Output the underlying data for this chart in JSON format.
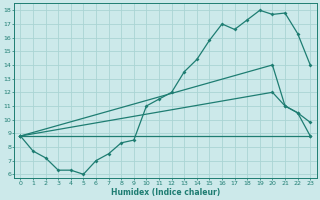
{
  "xlabel": "Humidex (Indice chaleur)",
  "bg_color": "#cce9ea",
  "grid_color": "#aad4d4",
  "line_color": "#1e7d72",
  "xlim": [
    -0.5,
    23.5
  ],
  "ylim": [
    5.7,
    18.5
  ],
  "yticks": [
    6,
    7,
    8,
    9,
    10,
    11,
    12,
    13,
    14,
    15,
    16,
    17,
    18
  ],
  "xticks": [
    0,
    1,
    2,
    3,
    4,
    5,
    6,
    7,
    8,
    9,
    10,
    11,
    12,
    13,
    14,
    15,
    16,
    17,
    18,
    19,
    20,
    21,
    22,
    23
  ],
  "line1_x": [
    0,
    1,
    2,
    3,
    4,
    5,
    6,
    7,
    8,
    9,
    10,
    11,
    12,
    13,
    14,
    15,
    16,
    17,
    18,
    19,
    20,
    21,
    22,
    23
  ],
  "line1_y": [
    8.8,
    7.7,
    7.2,
    6.3,
    6.3,
    6.0,
    7.0,
    7.5,
    8.3,
    8.5,
    11.0,
    11.5,
    12.0,
    13.5,
    14.4,
    15.8,
    17.0,
    16.6,
    17.3,
    18.0,
    17.7,
    17.8,
    16.3,
    14.0
  ],
  "line2_x": [
    0,
    20,
    21,
    22,
    23
  ],
  "line2_y": [
    8.8,
    14.0,
    11.0,
    10.5,
    8.8
  ],
  "line3_x": [
    0,
    20,
    21,
    22,
    23
  ],
  "line3_y": [
    8.8,
    12.0,
    11.0,
    10.5,
    9.8
  ],
  "line4_x": [
    0,
    23
  ],
  "line4_y": [
    8.8,
    8.8
  ]
}
